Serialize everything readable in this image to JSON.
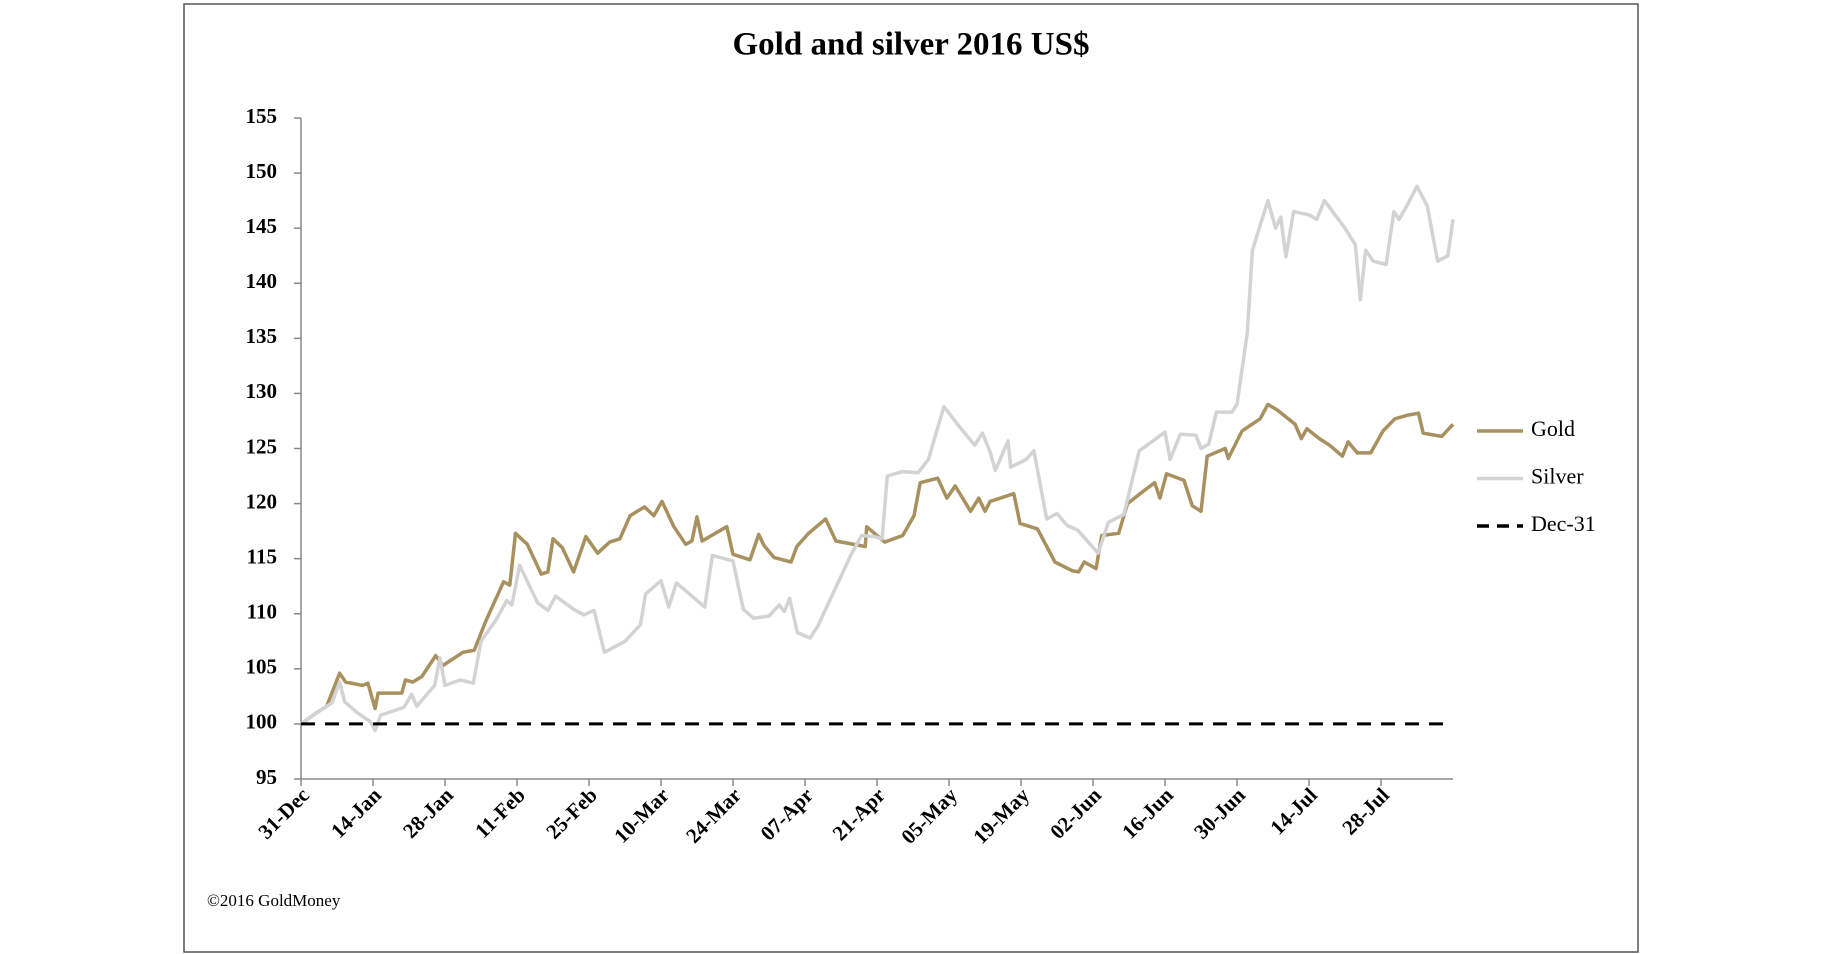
{
  "chart_data": {
    "type": "line",
    "title": "Gold and silver 2016 US$",
    "footer": "©2016 GoldMoney",
    "xlim": [
      0,
      224
    ],
    "ylim": [
      95,
      155
    ],
    "xticks": [
      {
        "value": 0,
        "label": "31-Dec"
      },
      {
        "value": 14,
        "label": "14-Jan"
      },
      {
        "value": 28,
        "label": "28-Jan"
      },
      {
        "value": 42,
        "label": "11-Feb"
      },
      {
        "value": 56,
        "label": "25-Feb"
      },
      {
        "value": 70,
        "label": "10-Mar"
      },
      {
        "value": 84,
        "label": "24-Mar"
      },
      {
        "value": 98,
        "label": "07-Apr"
      },
      {
        "value": 112,
        "label": "21-Apr"
      },
      {
        "value": 126,
        "label": "05-May"
      },
      {
        "value": 140,
        "label": "19-May"
      },
      {
        "value": 154,
        "label": "02-Jun"
      },
      {
        "value": 168,
        "label": "16-Jun"
      },
      {
        "value": 182,
        "label": "30-Jun"
      },
      {
        "value": 196,
        "label": "14-Jul"
      },
      {
        "value": 210,
        "label": "28-Jul"
      }
    ],
    "yticks": [
      95,
      100,
      105,
      110,
      115,
      120,
      125,
      130,
      135,
      140,
      145,
      150,
      155
    ],
    "series": [
      {
        "name": "Gold",
        "color": "#a8905f",
        "x": [
          0,
          3,
          5,
          7.5,
          8.7,
          12,
          13,
          14.4,
          15,
          19.6,
          20.3,
          21.7,
          23.5,
          26.2,
          27.6,
          31.5,
          33.7,
          36,
          39.4,
          40.6,
          41.7,
          44,
          46.7,
          48,
          49,
          50.8,
          53,
          55.4,
          57.7,
          60,
          62,
          64,
          66.8,
          68.6,
          70.2,
          72.5,
          74.8,
          76,
          77,
          78,
          82.8,
          84,
          87.3,
          89,
          90,
          92,
          95.3,
          96.4,
          98.7,
          102,
          104,
          109.7,
          110,
          113.5,
          117,
          119.2,
          120.4,
          123.8,
          125.6,
          127.2,
          130.2,
          131.8,
          133,
          134,
          138.6,
          139.8,
          143.2,
          146.6,
          150,
          151.2,
          152.3,
          154.6,
          155.7,
          159,
          160.7,
          163.7,
          166,
          167,
          168.3,
          171.7,
          173.3,
          175,
          176.2,
          179.7,
          180.3,
          183,
          186.5,
          188,
          189.8,
          193.3,
          194.5,
          195.6,
          198,
          200,
          202.5,
          203.6,
          205.4,
          208,
          210.4,
          212.7,
          215,
          217.3,
          218.2,
          221.8,
          224
        ],
        "values": [
          100,
          101,
          101.6,
          104.6,
          103.8,
          103.5,
          103.7,
          101.4,
          102.8,
          102.8,
          104,
          103.8,
          104.3,
          106.2,
          105.3,
          106.5,
          106.7,
          109.4,
          112.9,
          112.6,
          117.3,
          116.3,
          113.6,
          113.8,
          116.8,
          116,
          113.8,
          117,
          115.5,
          116.5,
          116.8,
          118.9,
          119.7,
          118.9,
          120.2,
          117.9,
          116.3,
          116.6,
          118.8,
          116.6,
          117.9,
          115.4,
          114.9,
          117.2,
          116.2,
          115.1,
          114.7,
          116.1,
          117.3,
          118.6,
          116.6,
          116.1,
          117.9,
          116.5,
          117.1,
          118.9,
          121.9,
          122.3,
          120.5,
          121.6,
          119.3,
          120.5,
          119.3,
          120.2,
          120.9,
          118.2,
          117.7,
          114.7,
          113.9,
          113.8,
          114.7,
          114.1,
          117.1,
          117.3,
          120,
          121.1,
          121.9,
          120.5,
          122.7,
          122.1,
          119.8,
          119.3,
          124.3,
          125,
          124.1,
          126.6,
          127.7,
          129,
          128.5,
          127.2,
          125.9,
          126.8,
          125.9,
          125.3,
          124.3,
          125.6,
          124.6,
          124.6,
          126.6,
          127.7,
          128,
          128.2,
          126.4,
          126.1,
          127.2
        ]
      },
      {
        "name": "Silver",
        "color": "#d3d3d3",
        "x": [
          0,
          3,
          6,
          7.5,
          8.5,
          11,
          13.5,
          14.4,
          15.5,
          20,
          21.5,
          22.5,
          26,
          27,
          28,
          31,
          33.5,
          35,
          38,
          40,
          41,
          42.5,
          46,
          48,
          49.5,
          53,
          55,
          57,
          59,
          63,
          66,
          67,
          70,
          71.5,
          73,
          76,
          78.5,
          80,
          84,
          86,
          88,
          91,
          93,
          94,
          95,
          96.5,
          99,
          100.5,
          104,
          107,
          109,
          111.5,
          113,
          114,
          117,
          120,
          122,
          125,
          128,
          131,
          132.5,
          134,
          135,
          137.5,
          138,
          141,
          142.5,
          145,
          147,
          149,
          151,
          155,
          157,
          160,
          163,
          166,
          168,
          169,
          171,
          174,
          175,
          176.5,
          178,
          181,
          182,
          184,
          185,
          188,
          189.5,
          190.5,
          191.5,
          193,
          196,
          197.5,
          199,
          203,
          205,
          206,
          207,
          208.5,
          211,
          212.5,
          213.5,
          215,
          217,
          219,
          221,
          223,
          224
        ],
        "values": [
          100,
          101,
          101.9,
          103.8,
          102,
          101,
          100.2,
          99.4,
          100.8,
          101.5,
          102.7,
          101.6,
          103.5,
          106,
          103.5,
          104,
          103.7,
          107.5,
          109.5,
          111.2,
          110.8,
          114.4,
          111,
          110.3,
          111.6,
          110.4,
          109.9,
          110.3,
          106.5,
          107.5,
          109,
          111.8,
          113,
          110.6,
          112.8,
          111.6,
          110.6,
          115.3,
          114.8,
          110.4,
          109.6,
          109.8,
          110.8,
          110.2,
          111.4,
          108.3,
          107.8,
          108.9,
          112.4,
          115.4,
          117.1,
          117,
          116.8,
          122.5,
          122.9,
          122.8,
          124,
          128.8,
          127,
          125.3,
          126.4,
          124.7,
          123,
          125.7,
          123.3,
          124,
          124.8,
          118.6,
          119.1,
          118,
          117.6,
          115.5,
          118.3,
          119,
          124.8,
          125.8,
          126.5,
          124,
          126.3,
          126.2,
          125,
          125.4,
          128.3,
          128.3,
          129,
          135.5,
          143,
          147.5,
          145,
          146,
          142.4,
          146.5,
          146.2,
          145.8,
          147.5,
          145,
          143.5,
          138.5,
          143,
          142,
          141.7,
          146.5,
          145.8,
          147,
          148.8,
          147,
          142,
          142.5,
          145.8
        ]
      },
      {
        "name": "Dec-31",
        "color": "#000000",
        "dashed": true,
        "x": [
          0,
          224
        ],
        "values": [
          100,
          100
        ]
      }
    ]
  }
}
